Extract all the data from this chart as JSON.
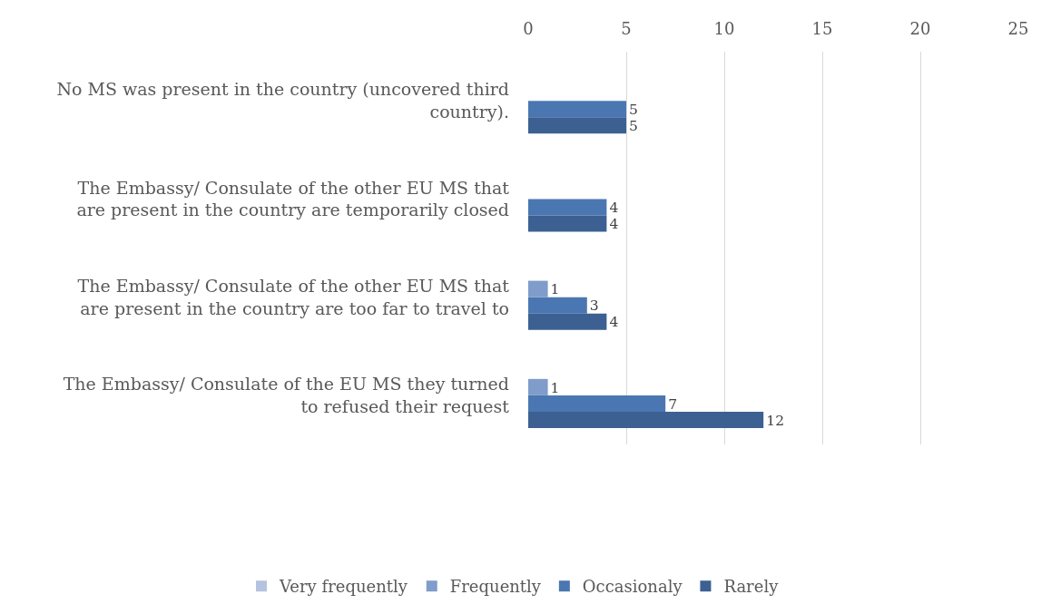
{
  "chart_data": {
    "type": "bar",
    "orientation": "horizontal",
    "categories": [
      "No MS was present in the country (uncovered third country).",
      "The Embassy/ Consulate of the other EU MS that are present in the country are temporarily closed",
      "The Embassy/ Consulate of the other EU MS that are present in the country are too far to travel to",
      "The Embassy/ Consulate of the EU MS they turned to refused their request"
    ],
    "series": [
      {
        "name": "Very frequently",
        "color": "#b4c3df",
        "values": [
          null,
          null,
          null,
          null
        ]
      },
      {
        "name": "Frequently",
        "color": "#7f9cca",
        "values": [
          null,
          null,
          1,
          1
        ]
      },
      {
        "name": "Occasionaly",
        "color": "#4a77b1",
        "values": [
          5,
          4,
          3,
          7
        ]
      },
      {
        "name": "Rarely",
        "color": "#3c6091",
        "values": [
          5,
          4,
          4,
          12
        ]
      }
    ],
    "xlim": [
      0,
      25
    ],
    "xticks": [
      0,
      5,
      10,
      15,
      20,
      25
    ],
    "grid": "x",
    "legend": "bottom",
    "data_labels": true
  }
}
